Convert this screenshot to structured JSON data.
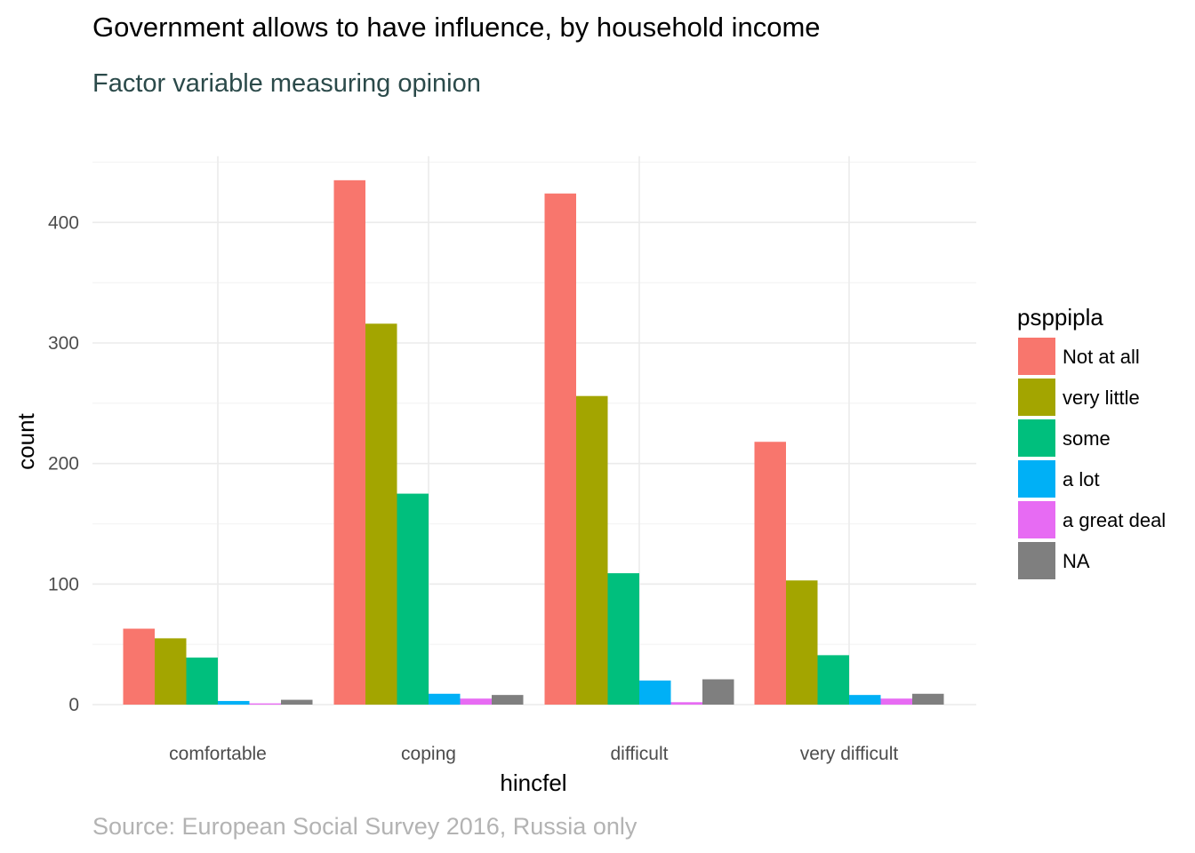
{
  "chart_data": {
    "type": "bar",
    "title": "Government allows to have influence, by household income",
    "subtitle": "Factor variable measuring opinion",
    "caption": "Source: European Social Survey 2016, Russia only",
    "xlabel": "hincfel",
    "ylabel": "count",
    "categories": [
      "comfortable",
      "coping",
      "difficult",
      "very difficult"
    ],
    "ylim": [
      0,
      455
    ],
    "yticks": [
      0,
      100,
      200,
      300,
      400
    ],
    "grid": true,
    "legend": {
      "title": "psppipla",
      "position": "right"
    },
    "series": [
      {
        "name": "Not at all",
        "color": "#F8766D",
        "values": [
          63,
          435,
          424,
          218
        ]
      },
      {
        "name": "very little",
        "color": "#A3A500",
        "values": [
          55,
          316,
          256,
          103
        ]
      },
      {
        "name": "some",
        "color": "#00BF7D",
        "values": [
          39,
          175,
          109,
          41
        ]
      },
      {
        "name": "a lot",
        "color": "#00B0F6",
        "values": [
          3,
          9,
          20,
          8
        ]
      },
      {
        "name": "a great deal",
        "color": "#E76BF3",
        "values": [
          1,
          5,
          2,
          5
        ]
      },
      {
        "name": "NA",
        "color": "#7F7F7F",
        "values": [
          4,
          8,
          21,
          9
        ]
      }
    ]
  }
}
